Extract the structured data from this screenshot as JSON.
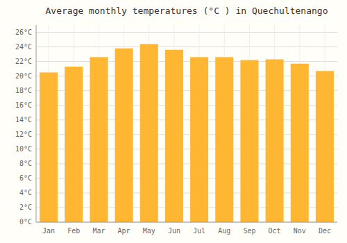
{
  "chart_data": {
    "type": "bar",
    "title": "Average monthly temperatures (°C ) in Quechultenango",
    "categories": [
      "Jan",
      "Feb",
      "Mar",
      "Apr",
      "May",
      "Jun",
      "Jul",
      "Aug",
      "Sep",
      "Oct",
      "Nov",
      "Dec"
    ],
    "values": [
      20.5,
      21.3,
      22.6,
      23.8,
      24.4,
      23.6,
      22.6,
      22.6,
      22.2,
      22.3,
      21.7,
      20.7
    ],
    "color": "#FFB733",
    "ylim": [
      0,
      27
    ],
    "yticks": [
      {
        "value": 0,
        "label": "0°C"
      },
      {
        "value": 2,
        "label": "2°C"
      },
      {
        "value": 4,
        "label": "4°C"
      },
      {
        "value": 6,
        "label": "6°C"
      },
      {
        "value": 8,
        "label": "8°C"
      },
      {
        "value": 10,
        "label": "10°C"
      },
      {
        "value": 12,
        "label": "12°C"
      },
      {
        "value": 14,
        "label": "14°C"
      },
      {
        "value": 16,
        "label": "16°C"
      },
      {
        "value": 18,
        "label": "18°C"
      },
      {
        "value": 20,
        "label": "20°C"
      },
      {
        "value": 22,
        "label": "22°C"
      },
      {
        "value": 24,
        "label": "24°C"
      },
      {
        "value": 26,
        "label": "26°C"
      }
    ],
    "grid": true
  }
}
